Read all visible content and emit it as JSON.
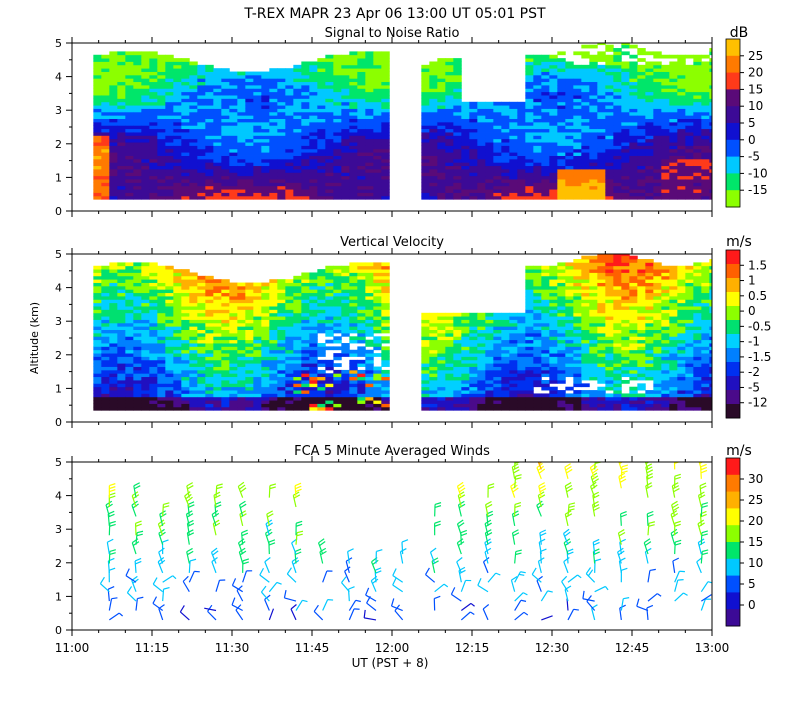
{
  "header": {
    "title": "T-REX  MAPR 23 Apr 06  13:00 UT  05:01  PST"
  },
  "x_axis": {
    "label": "UT  (PST + 8)",
    "ticks": [
      "11:00",
      "11:15",
      "11:30",
      "11:45",
      "12:00",
      "12:15",
      "12:30",
      "12:45",
      "13:00"
    ]
  },
  "y_axis_label": "Altitude (km)",
  "y_ticks": [
    "0",
    "1",
    "2",
    "3",
    "4",
    "5"
  ],
  "colors": {
    "palette": [
      "#8cff00",
      "#00e66a",
      "#00c8ff",
      "#0050ff",
      "#1010d0",
      "#3c0a96",
      "#5a0a78",
      "#ff3a1a",
      "#ff7a00",
      "#ffc000"
    ],
    "vv_palette": [
      "#2a0a28",
      "#4a0a8a",
      "#2010c0",
      "#0030f0",
      "#0080ff",
      "#00d0ff",
      "#00e070",
      "#8cff00",
      "#ffff00",
      "#ffb000",
      "#ff6000",
      "#ff1a1a"
    ],
    "wind_palette": [
      "#3c0a96",
      "#1010d0",
      "#0050ff",
      "#00c8ff",
      "#00e66a",
      "#8cff00",
      "#ffff00",
      "#ffb000",
      "#ff7a00",
      "#ff1a1a"
    ]
  },
  "chart_data": [
    {
      "type": "heatmap",
      "title": "Signal to Noise Ratio",
      "xlabel": "UT  (PST + 8)",
      "ylabel": "Altitude (km)",
      "xlim": [
        "11:00",
        "13:00"
      ],
      "ylim": [
        0,
        5
      ],
      "data_gap": [
        "11:59",
        "12:05"
      ],
      "colorbar": {
        "units": "dB",
        "labels": [
          "25",
          "20",
          "15",
          "10",
          "5",
          "0",
          "-5",
          "-10",
          "-15"
        ],
        "range": [
          -17,
          28
        ]
      }
    },
    {
      "type": "heatmap",
      "title": "Vertical Velocity",
      "xlabel": "UT  (PST + 8)",
      "ylabel": "Altitude (km)",
      "xlim": [
        "11:00",
        "13:00"
      ],
      "ylim": [
        0,
        5
      ],
      "data_gap": [
        "11:59",
        "12:05"
      ],
      "colorbar": {
        "units": "m/s",
        "labels": [
          "1.5",
          "1",
          "0.5",
          "0",
          "-0.5",
          "-1",
          "-1.5",
          "-2",
          "-5",
          "-12"
        ]
      }
    },
    {
      "type": "scatter",
      "subtype": "wind barbs",
      "title": "FCA 5 Minute Averaged Winds",
      "xlabel": "UT  (PST + 8)",
      "ylabel": "Altitude (km)",
      "xlim": [
        "11:00",
        "13:00"
      ],
      "ylim": [
        0,
        5
      ],
      "colorbar": {
        "units": "m/s",
        "labels": [
          "30",
          "25",
          "20",
          "15",
          "10",
          "5",
          "0"
        ],
        "range": [
          0,
          32
        ]
      },
      "profile_times": [
        "11:07",
        "11:12",
        "11:17",
        "11:22",
        "11:27",
        "11:32",
        "11:37",
        "11:42",
        "11:47",
        "11:52",
        "11:57",
        "12:02",
        "12:08",
        "12:13",
        "12:18",
        "12:23",
        "12:28",
        "12:33",
        "12:38",
        "12:43",
        "12:48",
        "12:53",
        "12:58"
      ]
    }
  ]
}
